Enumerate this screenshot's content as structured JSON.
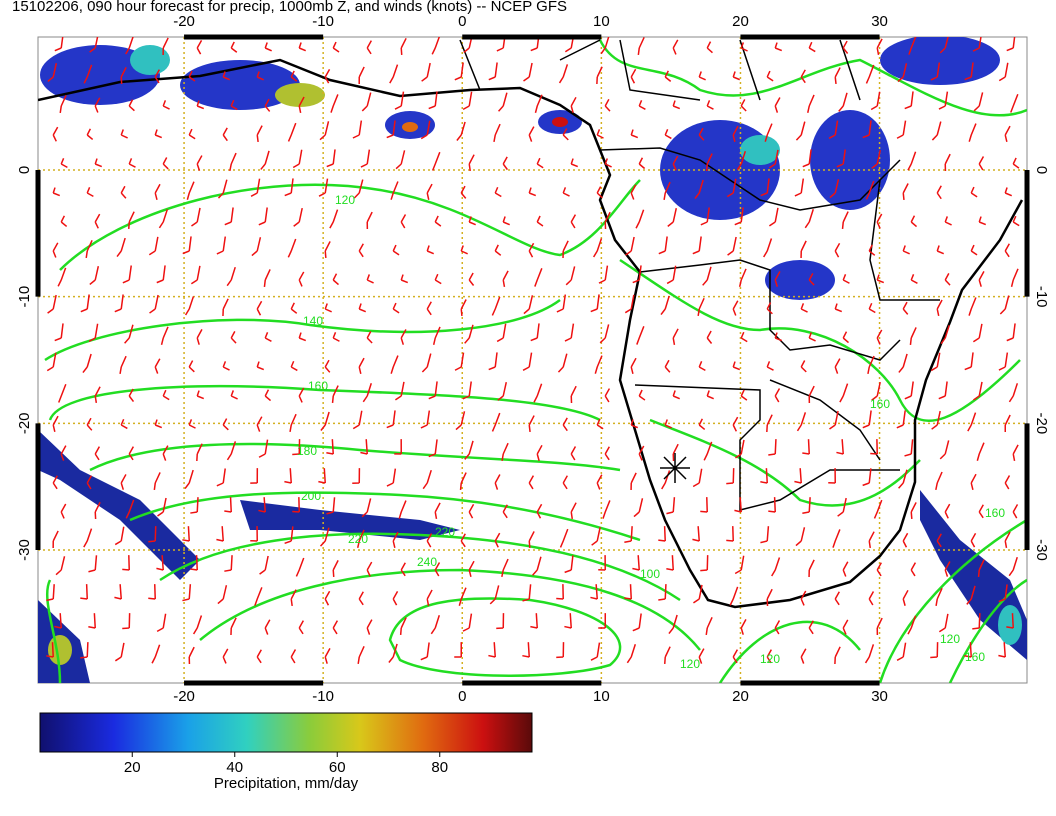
{
  "title": "15102206, 090 hour forecast for precip, 1000mb Z, and winds (knots) -- NCEP GFS",
  "map": {
    "lonlim": [
      -30.5,
      40.6
    ],
    "latlim": [
      10.5,
      -40.5
    ],
    "lonticks": [
      -20,
      -10,
      0,
      10,
      20,
      30
    ],
    "latticks": [
      0,
      -10,
      -20,
      -30
    ]
  },
  "colorbar": {
    "label": "Precipitation, mm/day",
    "lim": [
      2,
      98
    ],
    "ticks": [
      20,
      40,
      60,
      80
    ]
  },
  "contour_labels": [
    "120",
    "140",
    "160",
    "180",
    "200",
    "220",
    "220",
    "240",
    "100",
    "120",
    "120",
    "160",
    "160",
    "120",
    "160"
  ]
}
